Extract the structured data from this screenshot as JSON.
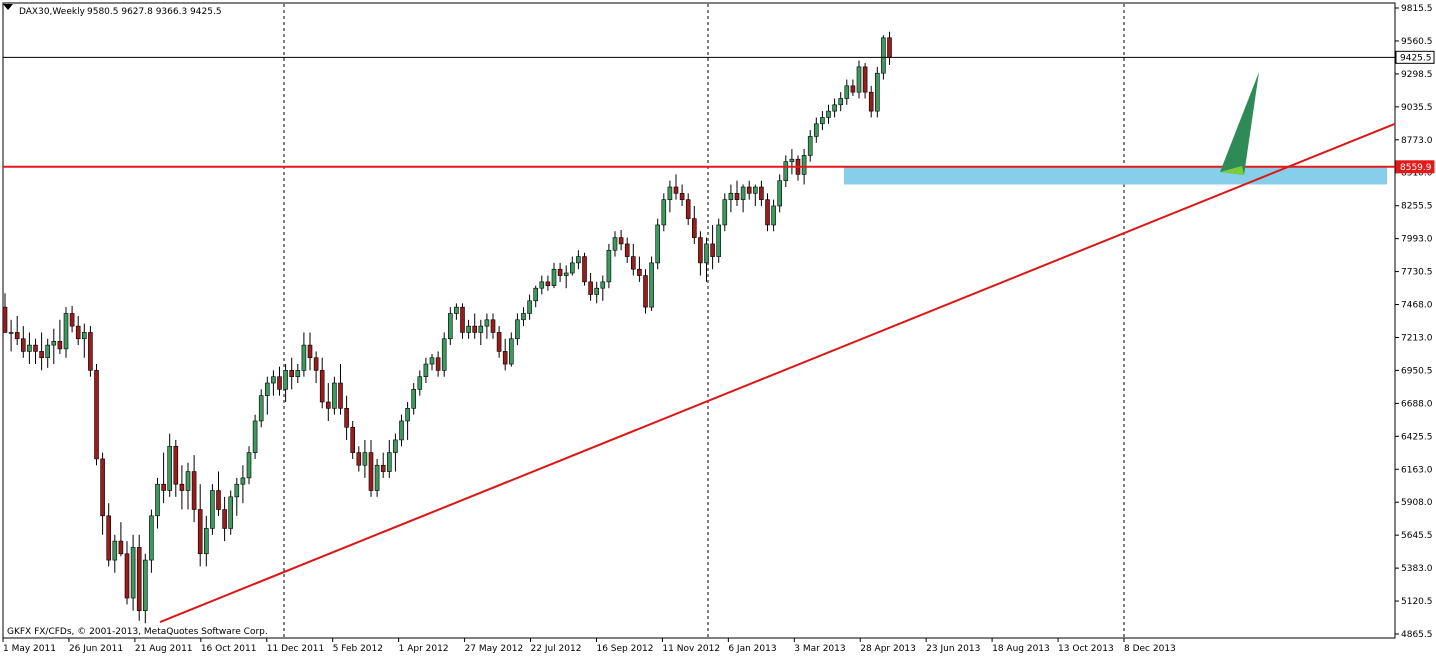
{
  "header": {
    "symbol": "DAX30,Weekly",
    "ohlc": "9580.5 9627.8 9366.3 9425.5"
  },
  "footer": {
    "copyright": "GKFX FX/CFDs, © 2001-2013, MetaQuotes Software Corp."
  },
  "price_labels": {
    "current": "9425.5",
    "level": "8559.9"
  },
  "colors": {
    "bull": "#3c9a5f",
    "bear": "#9b1c1c",
    "level_line": "#e41a1a",
    "trendline": "#dd1515",
    "zone": "#87ceeb",
    "arrow_dark": "#2e8b57",
    "arrow_light": "#7ccd3a"
  },
  "chart_data": {
    "type": "candlestick",
    "y_ticks": [
      "9815.5",
      "9560.5",
      "9298.5",
      "9035.5",
      "8773.0",
      "8510.0",
      "8255.5",
      "7993.0",
      "7730.5",
      "7468.0",
      "7213.0",
      "6950.5",
      "6688.0",
      "6425.5",
      "6163.0",
      "5908.0",
      "5645.5",
      "5383.0",
      "5120.5",
      "4865.5"
    ],
    "x_ticks": [
      "1 May 2011",
      "26 Jun 2011",
      "21 Aug 2011",
      "16 Oct 2011",
      "11 Dec 2011",
      "5 Feb 2012",
      "1 Apr 2012",
      "27 May 2012",
      "22 Jul 2012",
      "16 Sep 2012",
      "11 Nov 2012",
      "6 Jan 2013",
      "3 Mar 2013",
      "28 Apr 2013",
      "23 Jun 2013",
      "18 Aug 2013",
      "13 Oct 2013",
      "8 Dec 2013"
    ],
    "ylim": [
      4865.5,
      9815.5
    ],
    "horizontal_level": 8559.9,
    "current_price": 9425.5,
    "support_zone": [
      8420,
      8559.9
    ],
    "trendline": {
      "from": [
        "21 Aug 2011",
        4960
      ],
      "to": [
        "beyond 8 Dec 2013",
        8900
      ]
    },
    "grid": "vertical dashed separators",
    "ohlc": [
      [
        7450,
        7560,
        7250,
        7250
      ],
      [
        7250,
        7350,
        7100,
        7250
      ],
      [
        7250,
        7380,
        7150,
        7200
      ],
      [
        7200,
        7300,
        7050,
        7100
      ],
      [
        7100,
        7250,
        7000,
        7150
      ],
      [
        7150,
        7200,
        7000,
        7100
      ],
      [
        7100,
        7250,
        6950,
        7050
      ],
      [
        7050,
        7200,
        6970,
        7150
      ],
      [
        7150,
        7280,
        7000,
        7180
      ],
      [
        7180,
        7350,
        7080,
        7120
      ],
      [
        7120,
        7450,
        7050,
        7400
      ],
      [
        7400,
        7460,
        7250,
        7300
      ],
      [
        7300,
        7380,
        7150,
        7200
      ],
      [
        7200,
        7320,
        7050,
        7250
      ],
      [
        7250,
        7300,
        6900,
        6950
      ],
      [
        6950,
        7000,
        6200,
        6250
      ],
      [
        6250,
        6300,
        5650,
        5800
      ],
      [
        5800,
        5900,
        5400,
        5450
      ],
      [
        5450,
        5650,
        5350,
        5600
      ],
      [
        5600,
        5750,
        5480,
        5500
      ],
      [
        5500,
        5600,
        5100,
        5150
      ],
      [
        5150,
        5650,
        5050,
        5550
      ],
      [
        5550,
        5650,
        4970,
        5050
      ],
      [
        5050,
        5500,
        4950,
        5450
      ],
      [
        5450,
        5850,
        5350,
        5800
      ],
      [
        5800,
        6100,
        5700,
        6050
      ],
      [
        6050,
        6300,
        5900,
        6000
      ],
      [
        6000,
        6450,
        5950,
        6350
      ],
      [
        6350,
        6400,
        5950,
        6050
      ],
      [
        6050,
        6200,
        5850,
        6000
      ],
      [
        6000,
        6220,
        5850,
        6150
      ],
      [
        6150,
        6280,
        5750,
        5850
      ],
      [
        5850,
        6050,
        5400,
        5500
      ],
      [
        5500,
        5800,
        5400,
        5700
      ],
      [
        5700,
        6050,
        5650,
        6000
      ],
      [
        6000,
        6150,
        5800,
        5850
      ],
      [
        5850,
        5950,
        5600,
        5700
      ],
      [
        5700,
        6000,
        5650,
        5950
      ],
      [
        5950,
        6100,
        5800,
        6050
      ],
      [
        6050,
        6200,
        5900,
        6100
      ],
      [
        6100,
        6350,
        6050,
        6300
      ],
      [
        6300,
        6600,
        6250,
        6550
      ],
      [
        6550,
        6800,
        6500,
        6750
      ],
      [
        6750,
        6900,
        6600,
        6850
      ],
      [
        6850,
        6950,
        6750,
        6900
      ],
      [
        6900,
        6980,
        6750,
        6800
      ],
      [
        6800,
        7000,
        6700,
        6950
      ],
      [
        6950,
        7050,
        6800,
        6900
      ],
      [
        6900,
        7000,
        6850,
        6950
      ],
      [
        6950,
        7250,
        6900,
        7150
      ],
      [
        7150,
        7250,
        6950,
        7050
      ],
      [
        7050,
        7100,
        6850,
        6950
      ],
      [
        6950,
        7050,
        6650,
        6700
      ],
      [
        6700,
        6850,
        6550,
        6650
      ],
      [
        6650,
        6900,
        6600,
        6850
      ],
      [
        6850,
        7000,
        6600,
        6650
      ],
      [
        6650,
        6750,
        6400,
        6500
      ],
      [
        6500,
        6550,
        6250,
        6300
      ],
      [
        6300,
        6350,
        6150,
        6200
      ],
      [
        6200,
        6400,
        6100,
        6300
      ],
      [
        6300,
        6400,
        5950,
        6000
      ],
      [
        6000,
        6250,
        5950,
        6200
      ],
      [
        6200,
        6300,
        6100,
        6150
      ],
      [
        6150,
        6400,
        6100,
        6300
      ],
      [
        6300,
        6450,
        6150,
        6400
      ],
      [
        6400,
        6600,
        6350,
        6550
      ],
      [
        6550,
        6700,
        6400,
        6650
      ],
      [
        6650,
        6850,
        6600,
        6800
      ],
      [
        6800,
        6950,
        6750,
        6900
      ],
      [
        6900,
        7050,
        6850,
        7000
      ],
      [
        7000,
        7080,
        6950,
        7050
      ],
      [
        7050,
        7100,
        6900,
        6950
      ],
      [
        6950,
        7250,
        6900,
        7200
      ],
      [
        7200,
        7450,
        7150,
        7400
      ],
      [
        7400,
        7480,
        7350,
        7450
      ],
      [
        7450,
        7480,
        7200,
        7250
      ],
      [
        7250,
        7350,
        7200,
        7300
      ],
      [
        7300,
        7400,
        7200,
        7250
      ],
      [
        7250,
        7350,
        7150,
        7300
      ],
      [
        7300,
        7400,
        7200,
        7350
      ],
      [
        7350,
        7400,
        7200,
        7250
      ],
      [
        7250,
        7300,
        7050,
        7100
      ],
      [
        7100,
        7200,
        6950,
        7000
      ],
      [
        7000,
        7250,
        6980,
        7200
      ],
      [
        7200,
        7400,
        7150,
        7350
      ],
      [
        7350,
        7450,
        7300,
        7400
      ],
      [
        7400,
        7550,
        7350,
        7500
      ],
      [
        7500,
        7620,
        7450,
        7600
      ],
      [
        7600,
        7700,
        7550,
        7650
      ],
      [
        7650,
        7700,
        7580,
        7620
      ],
      [
        7620,
        7800,
        7600,
        7750
      ],
      [
        7750,
        7800,
        7650,
        7700
      ],
      [
        7700,
        7780,
        7600,
        7720
      ],
      [
        7720,
        7850,
        7700,
        7800
      ],
      [
        7800,
        7900,
        7750,
        7850
      ],
      [
        7850,
        7880,
        7620,
        7650
      ],
      [
        7650,
        7720,
        7500,
        7550
      ],
      [
        7550,
        7650,
        7480,
        7600
      ],
      [
        7600,
        7700,
        7500,
        7650
      ],
      [
        7650,
        7950,
        7600,
        7900
      ],
      [
        7900,
        8050,
        7850,
        8000
      ],
      [
        8000,
        8060,
        7900,
        7950
      ],
      [
        7950,
        8000,
        7800,
        7850
      ],
      [
        7850,
        7950,
        7700,
        7750
      ],
      [
        7750,
        7850,
        7650,
        7700
      ],
      [
        7700,
        7750,
        7400,
        7450
      ],
      [
        7450,
        7850,
        7420,
        7800
      ],
      [
        7800,
        8150,
        7750,
        8100
      ],
      [
        8100,
        8350,
        8050,
        8300
      ],
      [
        8300,
        8450,
        8200,
        8400
      ],
      [
        8400,
        8500,
        8300,
        8350
      ],
      [
        8350,
        8420,
        8250,
        8300
      ],
      [
        8300,
        8350,
        8100,
        8150
      ],
      [
        8150,
        8250,
        7950,
        8000
      ],
      [
        8000,
        8050,
        7700,
        7800
      ],
      [
        7800,
        8000,
        7650,
        7950
      ],
      [
        7950,
        8100,
        7750,
        7850
      ],
      [
        7850,
        8150,
        7800,
        8100
      ],
      [
        8100,
        8350,
        8050,
        8300
      ],
      [
        8300,
        8420,
        8200,
        8350
      ],
      [
        8350,
        8450,
        8250,
        8300
      ],
      [
        8300,
        8420,
        8200,
        8400
      ],
      [
        8400,
        8450,
        8300,
        8350
      ],
      [
        8350,
        8420,
        8250,
        8400
      ],
      [
        8400,
        8450,
        8250,
        8300
      ],
      [
        8300,
        8350,
        8050,
        8100
      ],
      [
        8100,
        8300,
        8050,
        8250
      ],
      [
        8250,
        8500,
        8200,
        8450
      ],
      [
        8450,
        8650,
        8400,
        8600
      ],
      [
        8600,
        8700,
        8500,
        8620
      ],
      [
        8620,
        8650,
        8450,
        8500
      ],
      [
        8500,
        8700,
        8420,
        8650
      ],
      [
        8650,
        8850,
        8600,
        8800
      ],
      [
        8800,
        8950,
        8750,
        8900
      ],
      [
        8900,
        9000,
        8850,
        8950
      ],
      [
        8950,
        9050,
        8900,
        9000
      ],
      [
        9000,
        9100,
        8950,
        9050
      ],
      [
        9050,
        9150,
        9000,
        9100
      ],
      [
        9100,
        9250,
        9050,
        9200
      ],
      [
        9200,
        9250,
        9120,
        9150
      ],
      [
        9150,
        9400,
        9100,
        9350
      ],
      [
        9350,
        9380,
        9100,
        9150
      ],
      [
        9150,
        9200,
        8950,
        9000
      ],
      [
        9000,
        9350,
        8950,
        9300
      ],
      [
        9300,
        9600,
        9250,
        9580
      ],
      [
        9580,
        9628,
        9366,
        9425
      ]
    ]
  }
}
